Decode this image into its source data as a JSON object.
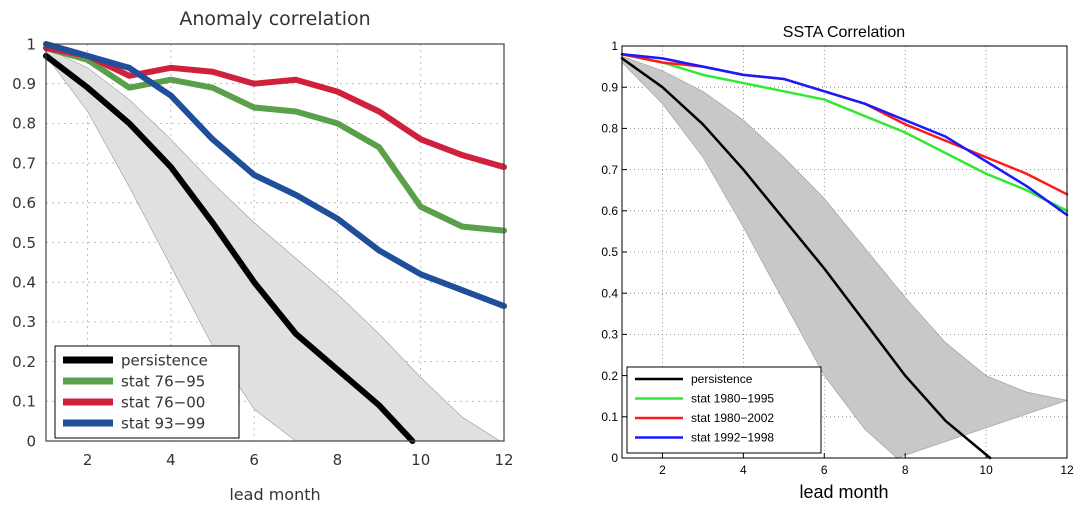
{
  "chart_data": [
    {
      "type": "line",
      "title": "Anomaly correlation",
      "xlabel": "lead month",
      "ylabel": "",
      "xlim": [
        1,
        12
      ],
      "ylim": [
        0,
        1
      ],
      "xticks": [
        2,
        4,
        6,
        8,
        10,
        12
      ],
      "yticks": [
        0,
        0.1,
        0.2,
        0.3,
        0.4,
        0.5,
        0.6,
        0.7,
        0.8,
        0.9,
        1
      ],
      "grid": true,
      "legend_position": "bottom-left",
      "shaded_band": {
        "fill": "#e0e0e0",
        "upper": [
          [
            1,
            0.99
          ],
          [
            2,
            0.94
          ],
          [
            3,
            0.86
          ],
          [
            4,
            0.76
          ],
          [
            5,
            0.65
          ],
          [
            6,
            0.55
          ],
          [
            7,
            0.46
          ],
          [
            8,
            0.37
          ],
          [
            9,
            0.27
          ],
          [
            10,
            0.16
          ],
          [
            11,
            0.06
          ],
          [
            11.9,
            0
          ]
        ],
        "lower": [
          [
            1,
            0.97
          ],
          [
            2,
            0.83
          ],
          [
            3,
            0.64
          ],
          [
            4,
            0.44
          ],
          [
            5,
            0.24
          ],
          [
            6,
            0.08
          ],
          [
            7,
            0
          ]
        ]
      },
      "series": [
        {
          "name": "persistence",
          "color": "#000000",
          "x": [
            1,
            2,
            3,
            4,
            5,
            6,
            7,
            8,
            9,
            9.8
          ],
          "values": [
            0.97,
            0.89,
            0.8,
            0.69,
            0.55,
            0.4,
            0.27,
            0.18,
            0.09,
            0
          ]
        },
        {
          "name": "stat 76−95",
          "color": "#5aa04a",
          "x": [
            1,
            2,
            3,
            4,
            5,
            6,
            7,
            8,
            9,
            10,
            11,
            12
          ],
          "values": [
            0.99,
            0.96,
            0.89,
            0.91,
            0.89,
            0.84,
            0.83,
            0.8,
            0.74,
            0.59,
            0.54,
            0.53
          ]
        },
        {
          "name": "stat 76−00",
          "color": "#d0213c",
          "x": [
            1,
            2,
            3,
            4,
            5,
            6,
            7,
            8,
            9,
            10,
            11,
            12
          ],
          "values": [
            0.99,
            0.97,
            0.92,
            0.94,
            0.93,
            0.9,
            0.91,
            0.88,
            0.83,
            0.76,
            0.72,
            0.69
          ]
        },
        {
          "name": "stat 93−99",
          "color": "#1f4e9a",
          "x": [
            1,
            2,
            3,
            4,
            5,
            6,
            7,
            8,
            9,
            10,
            11,
            12
          ],
          "values": [
            1.0,
            0.97,
            0.94,
            0.87,
            0.76,
            0.67,
            0.62,
            0.56,
            0.48,
            0.42,
            0.38,
            0.34
          ]
        }
      ]
    },
    {
      "type": "line",
      "title": "SSTA Correlation",
      "xlabel": "lead month",
      "ylabel": "",
      "xlim": [
        1,
        12
      ],
      "ylim": [
        0,
        1
      ],
      "xticks": [
        2,
        4,
        6,
        8,
        10,
        12
      ],
      "yticks": [
        0,
        0.1,
        0.2,
        0.3,
        0.4,
        0.5,
        0.6,
        0.7,
        0.8,
        0.9,
        1
      ],
      "grid": true,
      "legend_position": "bottom-left",
      "shaded_band": {
        "fill": "#c8c8c8",
        "upper": [
          [
            1,
            0.975
          ],
          [
            2,
            0.94
          ],
          [
            3,
            0.89
          ],
          [
            4,
            0.82
          ],
          [
            5,
            0.73
          ],
          [
            6,
            0.63
          ],
          [
            7,
            0.51
          ],
          [
            8,
            0.39
          ],
          [
            9,
            0.28
          ],
          [
            10,
            0.2
          ],
          [
            11,
            0.16
          ],
          [
            12,
            0.14
          ]
        ],
        "lower": [
          [
            1,
            0.96
          ],
          [
            2,
            0.86
          ],
          [
            3,
            0.73
          ],
          [
            4,
            0.56
          ],
          [
            5,
            0.38
          ],
          [
            6,
            0.2
          ],
          [
            7,
            0.07
          ],
          [
            7.8,
            0
          ]
        ]
      },
      "series": [
        {
          "name": "persistence",
          "color": "#000000",
          "x": [
            1,
            2,
            3,
            4,
            5,
            6,
            7,
            8,
            9,
            10.1
          ],
          "values": [
            0.97,
            0.9,
            0.81,
            0.7,
            0.58,
            0.46,
            0.33,
            0.2,
            0.09,
            0
          ]
        },
        {
          "name": "stat 1980−1995",
          "color": "#33e833",
          "x": [
            1,
            2,
            3,
            4,
            5,
            6,
            7,
            8,
            9,
            10,
            11,
            12
          ],
          "values": [
            0.98,
            0.96,
            0.93,
            0.91,
            0.89,
            0.87,
            0.83,
            0.79,
            0.74,
            0.69,
            0.65,
            0.6
          ]
        },
        {
          "name": "stat 1980−2002",
          "color": "#ff1a1a",
          "x": [
            1,
            2,
            3,
            4,
            5,
            6,
            7,
            8,
            9,
            10,
            11,
            12
          ],
          "values": [
            0.98,
            0.96,
            0.95,
            0.93,
            0.92,
            0.89,
            0.86,
            0.81,
            0.77,
            0.73,
            0.69,
            0.64
          ]
        },
        {
          "name": "stat 1992−1998",
          "color": "#1a1aff",
          "x": [
            1,
            2,
            3,
            4,
            5,
            6,
            7,
            8,
            9,
            10,
            11,
            12
          ],
          "values": [
            0.98,
            0.97,
            0.95,
            0.93,
            0.92,
            0.89,
            0.86,
            0.82,
            0.78,
            0.72,
            0.66,
            0.59
          ]
        }
      ]
    }
  ]
}
